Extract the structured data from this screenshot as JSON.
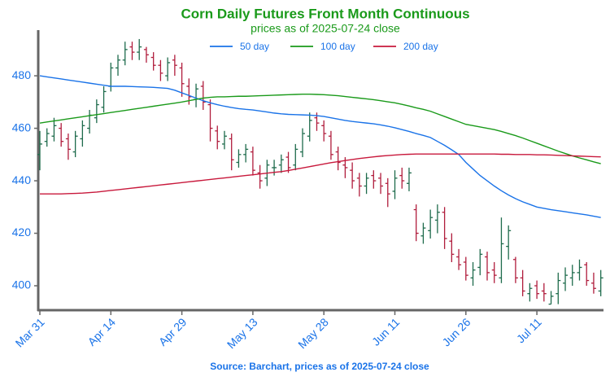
{
  "chart_data": {
    "type": "ohlc",
    "title": "Corn Daily Futures Front Month Continuous",
    "subtitle": "prices as of 2025-07-24 close",
    "source": "Source: Barchart, prices as of 2025-07-24 close",
    "categories": [
      "Mar 31",
      null,
      null,
      null,
      null,
      null,
      null,
      null,
      null,
      null,
      "Apr 14",
      null,
      null,
      null,
      null,
      null,
      null,
      null,
      null,
      null,
      "Apr 29",
      null,
      null,
      null,
      null,
      null,
      null,
      null,
      null,
      null,
      "May 13",
      null,
      null,
      null,
      null,
      null,
      null,
      null,
      null,
      null,
      "May 28",
      null,
      null,
      null,
      null,
      null,
      null,
      null,
      null,
      null,
      "Jun 11",
      null,
      null,
      null,
      null,
      null,
      null,
      null,
      null,
      null,
      "Jun 26",
      null,
      null,
      null,
      null,
      null,
      null,
      null,
      null,
      null,
      "Jul 11",
      null,
      null,
      null,
      null,
      null,
      null,
      null,
      null,
      null
    ],
    "open": [
      450,
      455,
      457,
      460,
      456,
      451,
      456,
      460,
      464,
      468,
      476,
      483,
      486,
      491,
      489,
      490,
      487,
      484,
      480,
      486,
      483,
      476,
      471,
      476,
      469,
      459,
      454,
      456,
      447,
      450,
      451,
      443,
      441,
      445,
      446,
      449,
      446,
      451,
      457,
      464,
      461,
      457,
      451,
      446,
      444,
      441,
      438,
      442,
      441,
      439,
      436,
      442,
      439,
      429,
      419,
      421,
      425,
      428,
      417,
      411,
      409,
      403,
      407,
      411,
      406,
      403,
      415,
      410,
      403,
      397,
      400,
      398,
      393,
      397,
      401,
      403,
      405,
      408,
      401,
      398
    ],
    "high": [
      459,
      460,
      464,
      462,
      458,
      459,
      463,
      467,
      471,
      476,
      485,
      488,
      493,
      493,
      494,
      491,
      489,
      486,
      487,
      488,
      485,
      479,
      477,
      478,
      471,
      461,
      459,
      458,
      452,
      454,
      453,
      446,
      448,
      448,
      450,
      451,
      454,
      460,
      466,
      466,
      463,
      459,
      453,
      449,
      447,
      443,
      443,
      444,
      443,
      441,
      444,
      445,
      445,
      431,
      424,
      429,
      431,
      430,
      420,
      414,
      411,
      409,
      414,
      413,
      409,
      426,
      423,
      411,
      406,
      401,
      402,
      401,
      398,
      405,
      407,
      408,
      410,
      409,
      405,
      406
    ],
    "low": [
      444,
      453,
      455,
      453,
      448,
      449,
      453,
      458,
      462,
      466,
      474,
      480,
      484,
      486,
      486,
      485,
      482,
      478,
      478,
      480,
      472,
      469,
      468,
      467,
      455,
      452,
      452,
      444,
      445,
      447,
      442,
      437,
      438,
      442,
      443,
      443,
      444,
      449,
      455,
      459,
      455,
      448,
      444,
      441,
      437,
      434,
      435,
      437,
      435,
      430,
      433,
      437,
      436,
      417,
      416,
      418,
      420,
      414,
      409,
      406,
      402,
      400,
      404,
      402,
      401,
      401,
      410,
      401,
      396,
      394,
      395,
      394,
      393,
      393,
      398,
      400,
      402,
      400,
      397,
      396
    ],
    "close": [
      454,
      458,
      461,
      455,
      452,
      457,
      461,
      465,
      469,
      474,
      483,
      486,
      490,
      489,
      491,
      488,
      484,
      481,
      485,
      484,
      477,
      472,
      475,
      470,
      460,
      455,
      457,
      448,
      450,
      452,
      444,
      440,
      446,
      445,
      448,
      445,
      452,
      458,
      463,
      462,
      458,
      450,
      447,
      445,
      440,
      438,
      441,
      440,
      438,
      435,
      441,
      440,
      443,
      420,
      422,
      426,
      428,
      418,
      412,
      408,
      404,
      406,
      412,
      405,
      404,
      416,
      421,
      403,
      398,
      399,
      397,
      397,
      396,
      402,
      404,
      405,
      407,
      402,
      399,
      403
    ],
    "up_color": "#1e6b4c",
    "down_color": "#b01c3c",
    "series": [
      {
        "name": "50 day",
        "color": "#1a73e8",
        "values": [
          480,
          479.6,
          479.2,
          478.8,
          478.4,
          478,
          477.6,
          477.2,
          476.8,
          476.4,
          476,
          476,
          476,
          475.9,
          475.8,
          475.7,
          475.6,
          475.4,
          475.2,
          474.5,
          473.5,
          472.5,
          471.5,
          470.5,
          469.7,
          469,
          468.4,
          467.9,
          467.5,
          467.2,
          467,
          466.6,
          466.2,
          465.8,
          465.5,
          465.3,
          465.2,
          465.1,
          465,
          464.8,
          464.5,
          464,
          463.5,
          463,
          462.6,
          462.3,
          462,
          461.7,
          461.3,
          460.8,
          460.2,
          459.5,
          458.8,
          458,
          457.3,
          456.5,
          455,
          453.5,
          451.8,
          450,
          447,
          444.5,
          442,
          440,
          438,
          436.2,
          434.6,
          433.2,
          432,
          431,
          430,
          429.5,
          429,
          428.6,
          428.2,
          427.8,
          427.4,
          427,
          426.5,
          426
        ]
      },
      {
        "name": "100 day",
        "color": "#1a9a1a",
        "values": [
          462,
          462.4,
          462.8,
          463.2,
          463.6,
          464,
          464.4,
          464.8,
          465.2,
          465.6,
          466,
          466.4,
          466.8,
          467.2,
          467.6,
          468,
          468.4,
          468.8,
          469.2,
          469.6,
          470,
          470.5,
          471,
          471.5,
          471.8,
          472,
          472,
          472.1,
          472.2,
          472.2,
          472.3,
          472.4,
          472.5,
          472.6,
          472.7,
          472.8,
          472.9,
          473,
          473,
          472.9,
          472.8,
          472.6,
          472.4,
          472.1,
          471.8,
          471.5,
          471.2,
          470.9,
          470.5,
          470.1,
          469.7,
          469.1,
          468.5,
          467.8,
          467.2,
          466.5,
          465.5,
          464.5,
          463.5,
          462.5,
          461.5,
          461,
          460.5,
          460,
          459.5,
          458.8,
          458,
          457.2,
          456.3,
          455.3,
          454.3,
          453.3,
          452.3,
          451.3,
          450.4,
          449.5,
          448.7,
          448,
          447.2,
          446.5
        ]
      },
      {
        "name": "200 day",
        "color": "#c8193c",
        "values": [
          435,
          435,
          435,
          435,
          435.1,
          435.2,
          435.3,
          435.5,
          435.7,
          436,
          436.3,
          436.6,
          436.9,
          437.2,
          437.5,
          437.8,
          438.1,
          438.4,
          438.7,
          439,
          439.3,
          439.6,
          439.9,
          440.2,
          440.5,
          440.8,
          441.1,
          441.4,
          441.7,
          442,
          442.3,
          442.6,
          442.9,
          443.2,
          443.5,
          443.9,
          444.4,
          444.9,
          445.4,
          445.9,
          446.4,
          446.9,
          447.3,
          447.7,
          448.1,
          448.5,
          448.8,
          449.1,
          449.4,
          449.6,
          449.8,
          450,
          450.1,
          450.2,
          450.2,
          450.2,
          450.2,
          450.2,
          450.2,
          450.2,
          450.2,
          450.2,
          450.2,
          450.2,
          450.2,
          450.1,
          450.1,
          450,
          450,
          450,
          449.9,
          449.9,
          449.8,
          449.7,
          449.6,
          449.5,
          449.4,
          449.3,
          449.2,
          449.1
        ]
      }
    ],
    "ylim": [
      390.7,
      497.4
    ],
    "yticks": [
      400,
      420,
      440,
      460,
      480
    ],
    "legend": "top"
  }
}
